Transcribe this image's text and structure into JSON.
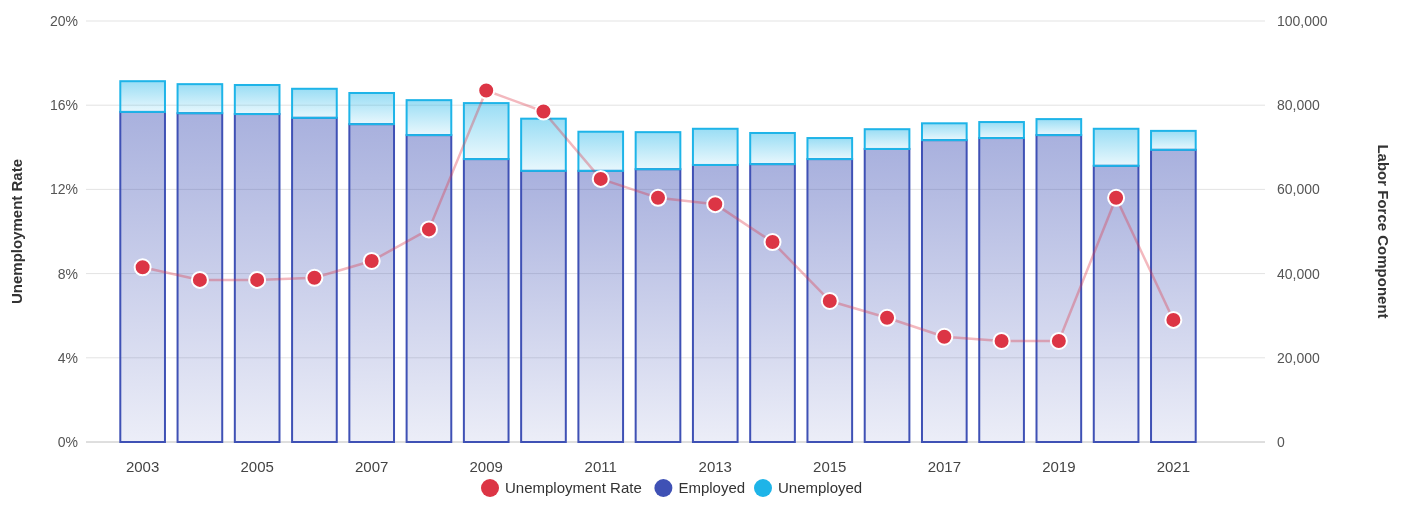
{
  "chart_data": {
    "type": "bar",
    "stacked": true,
    "ylabel": "Unemployment Rate",
    "y2label": "Labor Force Component",
    "categories": [
      "2003",
      null,
      "2005",
      null,
      "2007",
      null,
      "2009",
      null,
      "2011",
      null,
      "2013",
      null,
      "2015",
      null,
      "2017",
      null,
      "2019",
      null,
      "2021"
    ],
    "series": [
      {
        "name": "Unemployment Rate",
        "type": "line",
        "color": "#dc3545",
        "marker": "circle",
        "values": [
          8.3,
          7.7,
          7.7,
          7.8,
          8.6,
          10.1,
          16.7,
          15.7,
          12.5,
          11.6,
          11.3,
          9.5,
          6.7,
          5.9,
          5.0,
          4.8,
          4.8,
          11.6,
          5.8
        ]
      },
      {
        "name": "Employed",
        "axis": "y2",
        "color": "#3f51b5",
        "values": [
          78400,
          78100,
          77900,
          77000,
          75500,
          72900,
          67200,
          64400,
          64400,
          64800,
          65800,
          66000,
          67200,
          69600,
          71700,
          72200,
          72900,
          65600,
          69400
        ]
      },
      {
        "name": "Unemployed",
        "axis": "y2",
        "color": "#1eb4e8",
        "values": [
          7300,
          6900,
          6900,
          6900,
          7400,
          8300,
          13300,
          12400,
          9300,
          8800,
          8600,
          7400,
          5000,
          4700,
          4000,
          3800,
          3800,
          8800,
          4500
        ]
      }
    ],
    "ylim": [
      0,
      20
    ],
    "yticks": [
      {
        "value": 0,
        "label": "0%"
      },
      {
        "value": 4,
        "label": "4%"
      },
      {
        "value": 8,
        "label": "8%"
      },
      {
        "value": 12,
        "label": "12%"
      },
      {
        "value": 16,
        "label": "16%"
      },
      {
        "value": 20,
        "label": "20%"
      }
    ],
    "y2lim": [
      0,
      100000
    ],
    "y2ticks": [
      {
        "value": 0,
        "label": "0"
      },
      {
        "value": 20000,
        "label": "20,000"
      },
      {
        "value": 40000,
        "label": "40,000"
      },
      {
        "value": 60000,
        "label": "60,000"
      },
      {
        "value": 80000,
        "label": "80,000"
      },
      {
        "value": 100000,
        "label": "100,000"
      }
    ],
    "grid": "y",
    "legend": "bottom"
  }
}
